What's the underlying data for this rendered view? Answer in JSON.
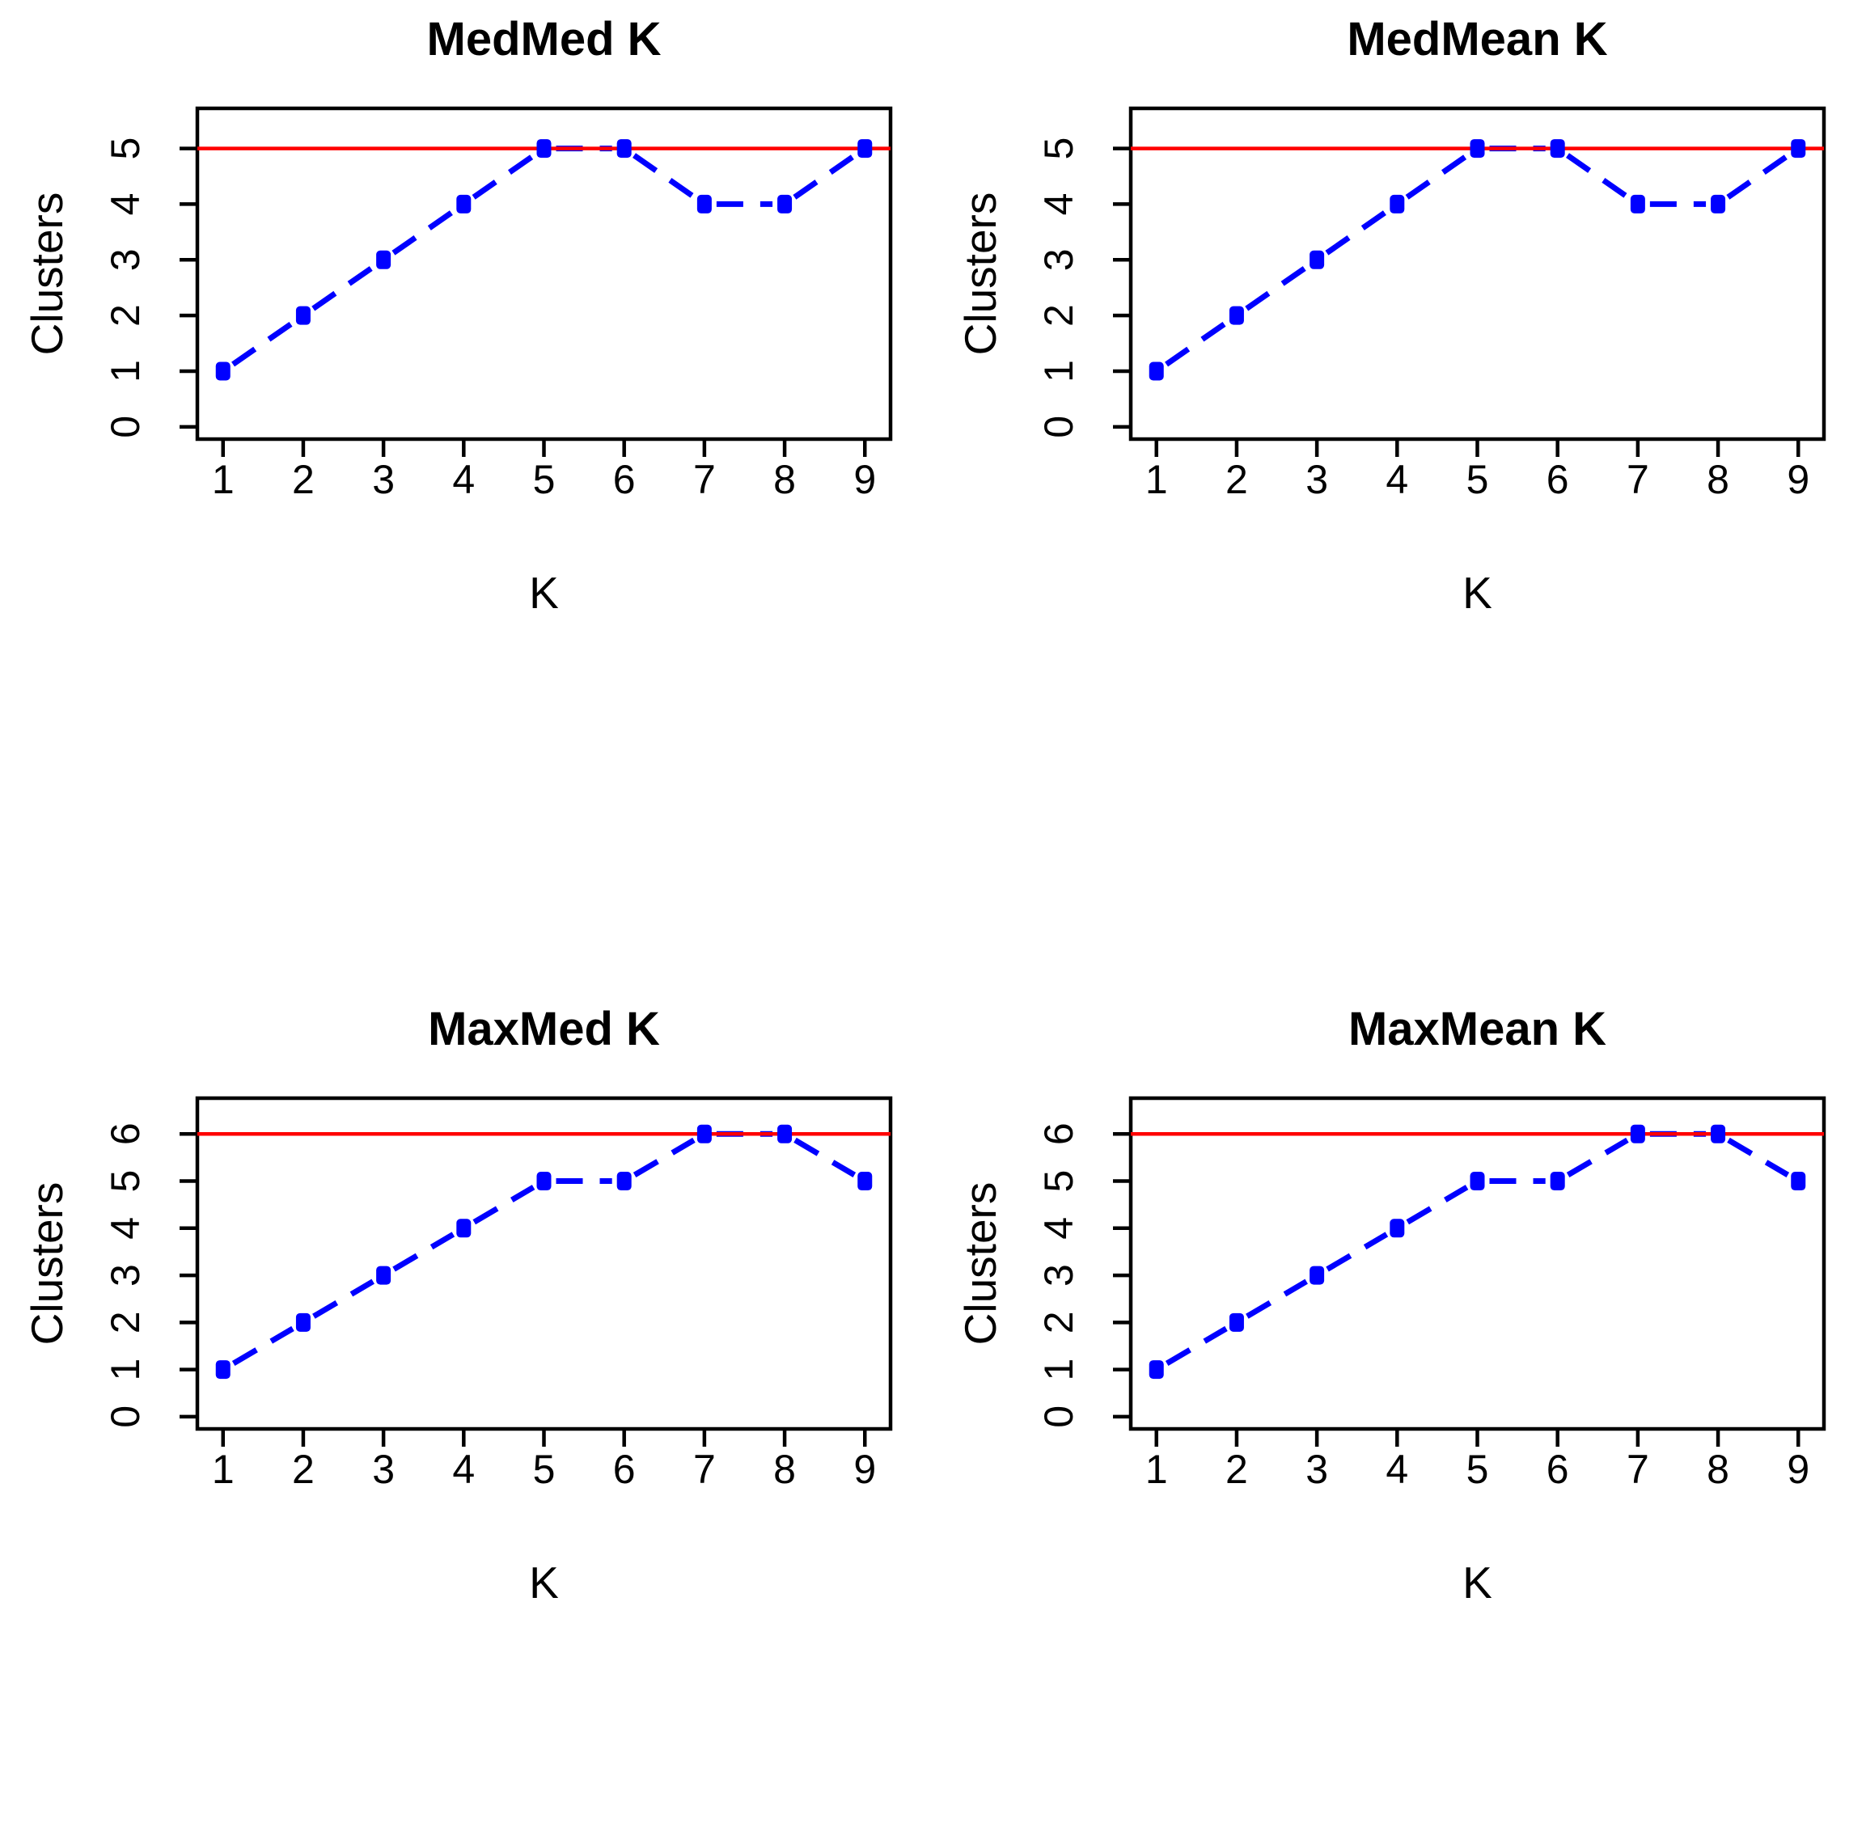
{
  "figure": {
    "background_color": "#ffffff",
    "layout": "2x2-grid-of-plots"
  },
  "chart_data": [
    {
      "type": "line",
      "title": "MedMed K",
      "xlabel": "K",
      "ylabel": "Clusters",
      "x": [
        1,
        2,
        3,
        4,
        5,
        6,
        7,
        8,
        9
      ],
      "y": [
        1,
        2,
        3,
        4,
        5,
        5,
        4,
        4,
        5
      ],
      "xticks": [
        1,
        2,
        3,
        4,
        5,
        6,
        7,
        8,
        9
      ],
      "yticks": [
        0,
        1,
        2,
        3,
        4,
        5
      ],
      "xlim": [
        1,
        9
      ],
      "ylim": [
        0,
        5.5
      ],
      "hline": 5,
      "series_color": "#0000FF",
      "hline_color": "#FF0000",
      "axis_color": "#000000",
      "linestyle": "dashed",
      "marker": "filled-square",
      "grid": false,
      "legend_position": "none"
    },
    {
      "type": "line",
      "title": "MedMean K",
      "xlabel": "K",
      "ylabel": "Clusters",
      "x": [
        1,
        2,
        3,
        4,
        5,
        6,
        7,
        8,
        9
      ],
      "y": [
        1,
        2,
        3,
        4,
        5,
        5,
        4,
        4,
        5
      ],
      "xticks": [
        1,
        2,
        3,
        4,
        5,
        6,
        7,
        8,
        9
      ],
      "yticks": [
        0,
        1,
        2,
        3,
        4,
        5
      ],
      "xlim": [
        1,
        9
      ],
      "ylim": [
        0,
        5.5
      ],
      "hline": 5,
      "series_color": "#0000FF",
      "hline_color": "#FF0000",
      "axis_color": "#000000",
      "linestyle": "dashed",
      "marker": "filled-square",
      "grid": false,
      "legend_position": "none"
    },
    {
      "type": "line",
      "title": "MaxMed K",
      "xlabel": "K",
      "ylabel": "Clusters",
      "x": [
        1,
        2,
        3,
        4,
        5,
        6,
        7,
        8,
        9
      ],
      "y": [
        1,
        2,
        3,
        4,
        5,
        5,
        6,
        6,
        5
      ],
      "xticks": [
        1,
        2,
        3,
        4,
        5,
        6,
        7,
        8,
        9
      ],
      "yticks": [
        0,
        1,
        2,
        3,
        4,
        5,
        6
      ],
      "xlim": [
        1,
        9
      ],
      "ylim": [
        0,
        6.5
      ],
      "hline": 6,
      "series_color": "#0000FF",
      "hline_color": "#FF0000",
      "axis_color": "#000000",
      "linestyle": "dashed",
      "marker": "filled-square",
      "grid": false,
      "legend_position": "none"
    },
    {
      "type": "line",
      "title": "MaxMean K",
      "xlabel": "K",
      "ylabel": "Clusters",
      "x": [
        1,
        2,
        3,
        4,
        5,
        6,
        7,
        8,
        9
      ],
      "y": [
        1,
        2,
        3,
        4,
        5,
        5,
        6,
        6,
        5
      ],
      "xticks": [
        1,
        2,
        3,
        4,
        5,
        6,
        7,
        8,
        9
      ],
      "yticks": [
        0,
        1,
        2,
        3,
        4,
        5,
        6
      ],
      "xlim": [
        1,
        9
      ],
      "ylim": [
        0,
        6.5
      ],
      "hline": 6,
      "series_color": "#0000FF",
      "hline_color": "#FF0000",
      "axis_color": "#000000",
      "linestyle": "dashed",
      "marker": "filled-square",
      "grid": false,
      "legend_position": "none"
    }
  ]
}
